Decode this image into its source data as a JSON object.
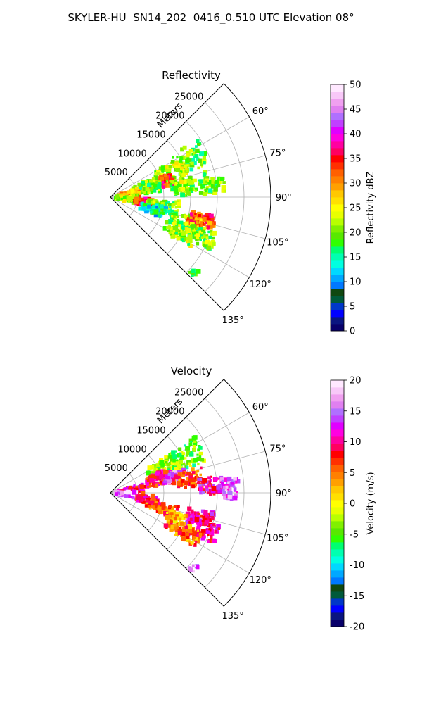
{
  "figure_title": "SKYLER-HU  SN14_202  0416_0.510 UTC Elevation 08°",
  "chart_data": [
    {
      "type": "heatmap",
      "subtype": "polar-sector-radar",
      "title": "Reflectivity",
      "range_label": "Meters",
      "range_ticks": [
        5000,
        10000,
        15000,
        20000,
        25000
      ],
      "range_max": 30000,
      "azimuth_range_deg": [
        45,
        135
      ],
      "azimuth_tick_labels": [
        "60°",
        "75°",
        "90°",
        "105°",
        "120°",
        "135°"
      ],
      "grid": true,
      "colorbar": {
        "label": "Reflectivity dBZ",
        "min": 0,
        "max": 50,
        "ticks": [
          0,
          5,
          10,
          15,
          20,
          25,
          30,
          35,
          40,
          45,
          50
        ],
        "colors": [
          "#08006a",
          "#0a1580",
          "#0000ff",
          "#0037c8",
          "#005a3a",
          "#104810",
          "#0078ff",
          "#00a8ff",
          "#00d8ff",
          "#00ffe0",
          "#00ffb0",
          "#00ff70",
          "#30ff00",
          "#58e800",
          "#80f000",
          "#b8ff00",
          "#e8ff00",
          "#ffff00",
          "#ffe000",
          "#ffc800",
          "#ffa000",
          "#ff8000",
          "#ff6000",
          "#ff3000",
          "#ff0000",
          "#ff0060",
          "#ff00a0",
          "#ff00e0",
          "#e000ff",
          "#c040ff",
          "#b070ff",
          "#e080f0",
          "#f0a0f0",
          "#f8c8f8",
          "#ffe8ff"
        ]
      },
      "clusters": [
        {
          "az": 64,
          "r": 16500,
          "dr": 3000,
          "daz": 8,
          "n": 70,
          "value": 20
        },
        {
          "az": 70,
          "r": 12500,
          "dr": 3200,
          "daz": 10,
          "n": 110,
          "value": 22
        },
        {
          "az": 74,
          "r": 9800,
          "dr": 2200,
          "daz": 6,
          "n": 80,
          "value": 34
        },
        {
          "az": 75,
          "r": 7000,
          "dr": 2500,
          "daz": 9,
          "n": 90,
          "value": 20
        },
        {
          "az": 82,
          "r": 15000,
          "dr": 3500,
          "daz": 7,
          "n": 70,
          "value": 21
        },
        {
          "az": 84,
          "r": 19500,
          "dr": 2000,
          "daz": 4,
          "n": 40,
          "value": 20
        },
        {
          "az": 80,
          "r": 3500,
          "dr": 2000,
          "daz": 9,
          "n": 60,
          "value": 30
        },
        {
          "az": 95,
          "r": 3000,
          "dr": 2000,
          "daz": 10,
          "n": 60,
          "value": 22
        },
        {
          "az": 98,
          "r": 6500,
          "dr": 1800,
          "daz": 5,
          "n": 70,
          "value": 34
        },
        {
          "az": 100,
          "r": 10000,
          "dr": 3000,
          "daz": 7,
          "n": 80,
          "value": 20
        },
        {
          "az": 106,
          "r": 8500,
          "dr": 2500,
          "daz": 6,
          "n": 60,
          "value": 14
        },
        {
          "az": 108,
          "r": 15000,
          "dr": 3000,
          "daz": 5,
          "n": 70,
          "value": 21
        },
        {
          "az": 104,
          "r": 17500,
          "dr": 2500,
          "daz": 4,
          "n": 60,
          "value": 33
        },
        {
          "az": 113,
          "r": 18000,
          "dr": 3500,
          "daz": 5,
          "n": 80,
          "value": 20
        },
        {
          "az": 117,
          "r": 15000,
          "dr": 3500,
          "daz": 5,
          "n": 80,
          "value": 21
        },
        {
          "az": 132,
          "r": 21000,
          "dr": 600,
          "daz": 2,
          "n": 8,
          "value": 20
        }
      ]
    },
    {
      "type": "heatmap",
      "subtype": "polar-sector-radar",
      "title": "Velocity",
      "range_label": "Meters",
      "range_ticks": [
        5000,
        10000,
        15000,
        20000,
        25000
      ],
      "range_max": 30000,
      "azimuth_range_deg": [
        45,
        135
      ],
      "azimuth_tick_labels": [
        "60°",
        "75°",
        "90°",
        "105°",
        "120°",
        "135°"
      ],
      "grid": true,
      "colorbar": {
        "label": "Velocity (m/s)",
        "min": -20,
        "max": 20,
        "ticks": [
          -20,
          -15,
          -10,
          -5,
          0,
          5,
          10,
          15,
          20
        ],
        "colors": [
          "#08006a",
          "#0a1580",
          "#0000ff",
          "#0037c8",
          "#005a3a",
          "#104810",
          "#0078ff",
          "#00a8ff",
          "#00d8ff",
          "#00ffe0",
          "#00ffb0",
          "#00ff70",
          "#30ff00",
          "#58e800",
          "#80f000",
          "#b8ff00",
          "#e8ff00",
          "#ffff00",
          "#ffe000",
          "#ffc800",
          "#ffa000",
          "#ff8000",
          "#ff6000",
          "#ff3000",
          "#ff0000",
          "#ff0060",
          "#ff00a0",
          "#ff00e0",
          "#e000ff",
          "#c040ff",
          "#b070ff",
          "#e080f0",
          "#f0a0f0",
          "#f8c8f8",
          "#ffe8ff"
        ]
      },
      "clusters": [
        {
          "az": 64,
          "r": 16000,
          "dr": 3000,
          "daz": 8,
          "n": 70,
          "value": -4
        },
        {
          "az": 66,
          "r": 11000,
          "dr": 3000,
          "daz": 9,
          "n": 90,
          "value": -3
        },
        {
          "az": 74,
          "r": 9500,
          "dr": 2500,
          "daz": 7,
          "n": 90,
          "value": 9
        },
        {
          "az": 76,
          "r": 12500,
          "dr": 2000,
          "daz": 4,
          "n": 40,
          "value": 15
        },
        {
          "az": 80,
          "r": 15000,
          "dr": 3000,
          "daz": 6,
          "n": 60,
          "value": 6
        },
        {
          "az": 86,
          "r": 19000,
          "dr": 2500,
          "daz": 5,
          "n": 60,
          "value": 11
        },
        {
          "az": 88,
          "r": 22500,
          "dr": 1500,
          "daz": 5,
          "n": 50,
          "value": 15
        },
        {
          "az": 82,
          "r": 4000,
          "dr": 2500,
          "daz": 9,
          "n": 80,
          "value": 9
        },
        {
          "az": 95,
          "r": 3000,
          "dr": 2000,
          "daz": 10,
          "n": 60,
          "value": 16
        },
        {
          "az": 100,
          "r": 7000,
          "dr": 2000,
          "daz": 6,
          "n": 70,
          "value": 9
        },
        {
          "az": 106,
          "r": 10000,
          "dr": 3000,
          "daz": 6,
          "n": 70,
          "value": 6
        },
        {
          "az": 105,
          "r": 17500,
          "dr": 2500,
          "daz": 4,
          "n": 60,
          "value": 10
        },
        {
          "az": 112,
          "r": 18500,
          "dr": 3000,
          "daz": 5,
          "n": 80,
          "value": 10
        },
        {
          "az": 118,
          "r": 15500,
          "dr": 3500,
          "daz": 5,
          "n": 80,
          "value": 5
        },
        {
          "az": 110,
          "r": 13000,
          "dr": 2000,
          "daz": 4,
          "n": 40,
          "value": 2
        },
        {
          "az": 132,
          "r": 21000,
          "dr": 600,
          "daz": 2,
          "n": 8,
          "value": 16
        }
      ]
    }
  ]
}
